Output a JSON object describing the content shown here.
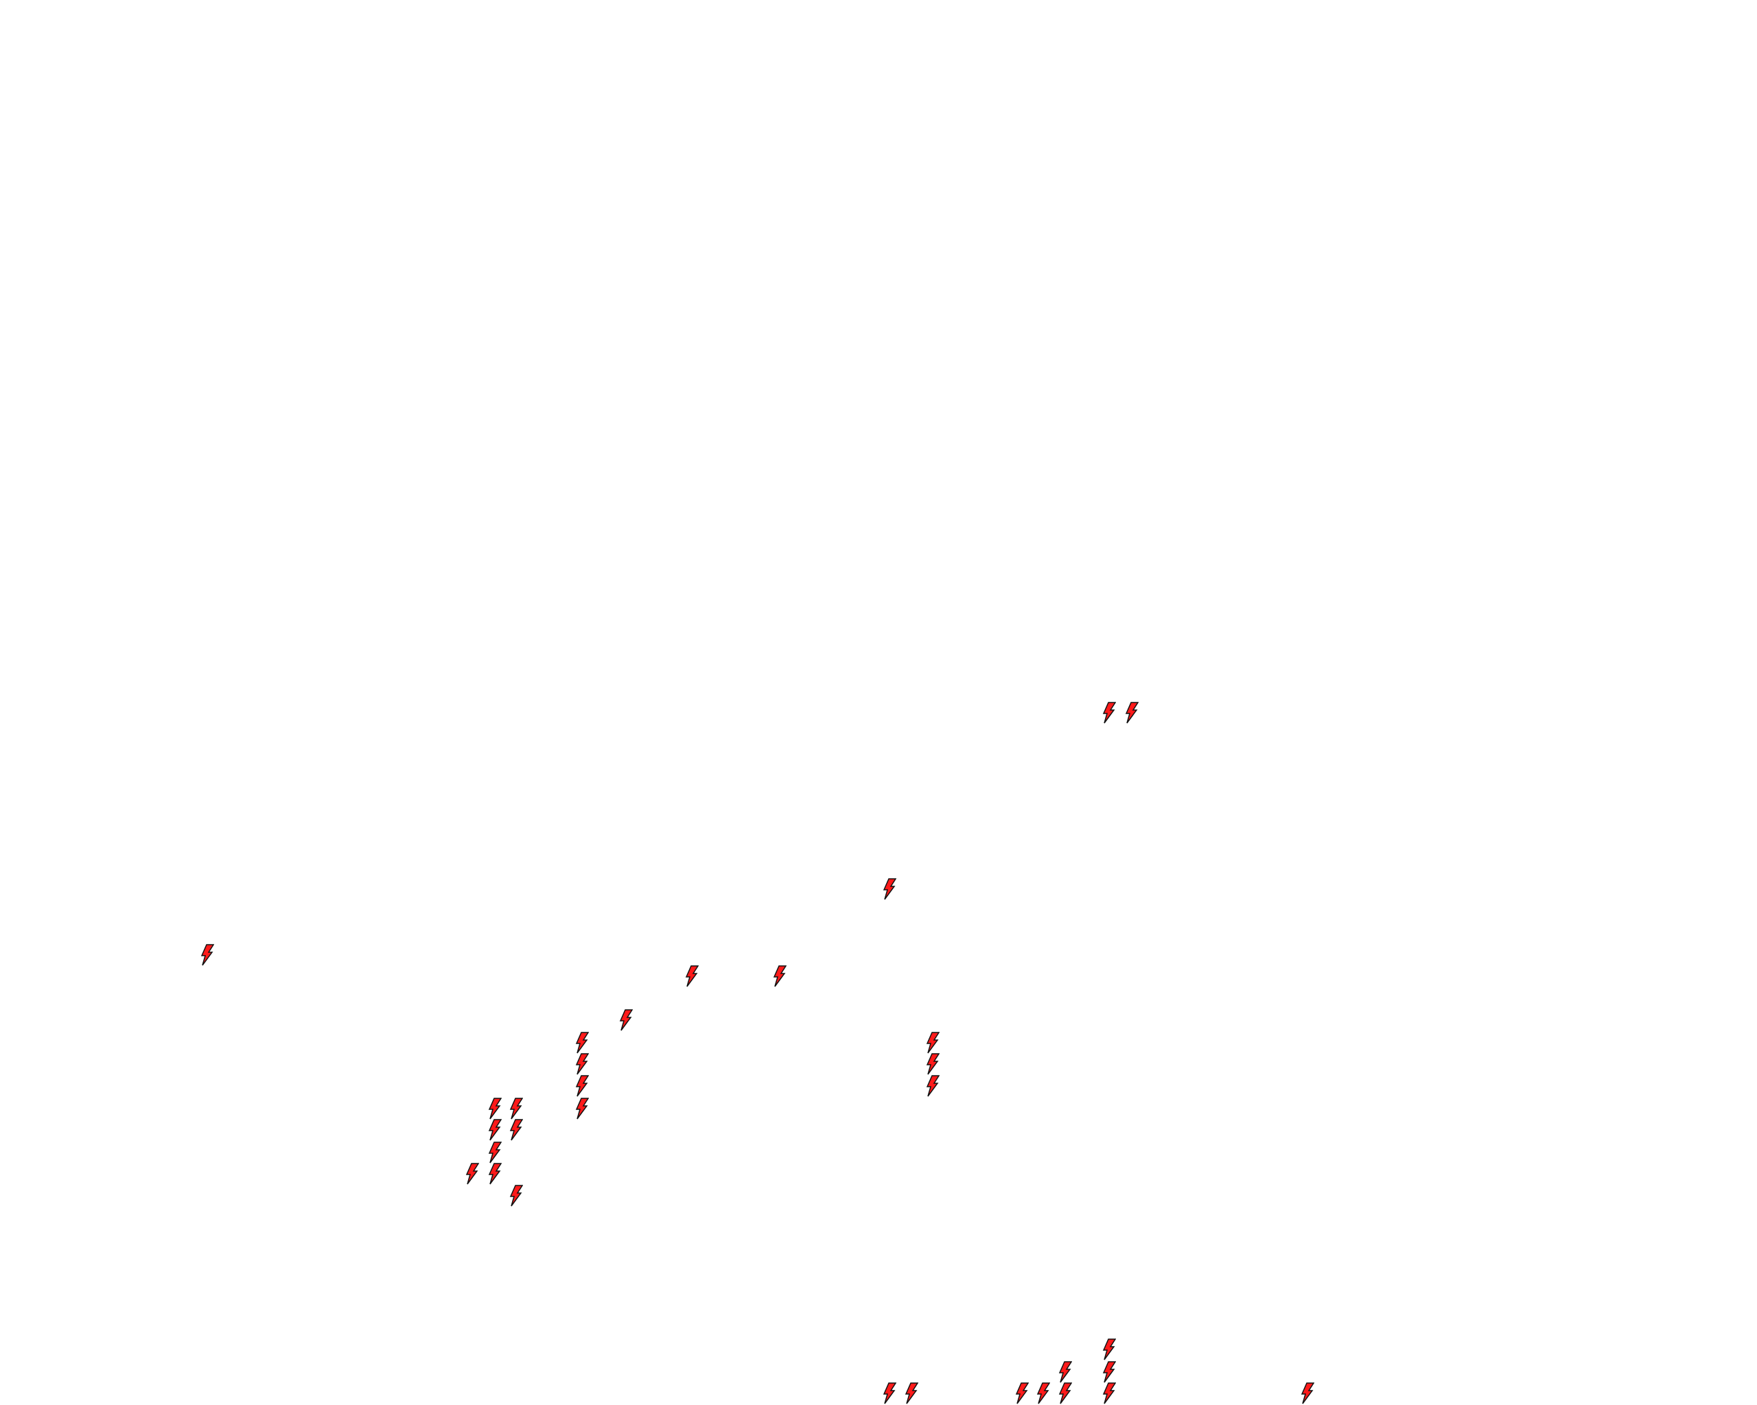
{
  "canvas": {
    "background": "#ffffff",
    "marker_icon": "lightning-bolt-icon",
    "marker_fill": "#ff1a1a",
    "marker_stroke": "#111111",
    "marker_count": 32
  }
}
